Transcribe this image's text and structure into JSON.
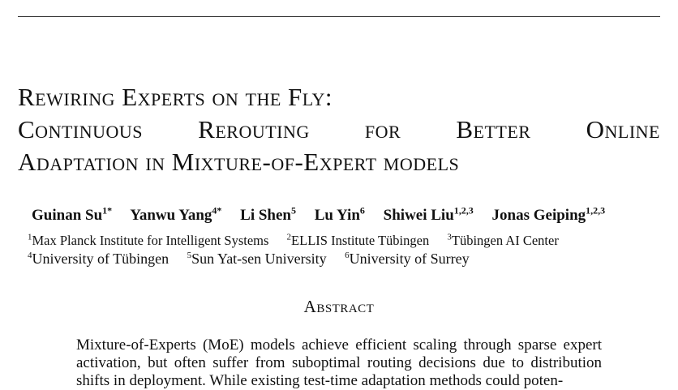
{
  "title": {
    "line1": "Rewiring Experts on the Fly:",
    "line2": "Continuous Rerouting for Better Online",
    "line3": "Adaptation in Mixture-of-Expert models"
  },
  "authors": [
    {
      "name": "Guinan Su",
      "sup": "1*"
    },
    {
      "name": "Yanwu Yang",
      "sup": "4*"
    },
    {
      "name": "Li Shen",
      "sup": "5"
    },
    {
      "name": "Lu Yin",
      "sup": "6"
    },
    {
      "name": "Shiwei Liu",
      "sup": "1,2,3"
    },
    {
      "name": "Jonas Geiping",
      "sup": "1,2,3"
    }
  ],
  "affiliations": [
    {
      "num": "1",
      "name": "Max Planck Institute for Intelligent Systems"
    },
    {
      "num": "2",
      "name": "ELLIS Institute Tübingen"
    },
    {
      "num": "3",
      "name": "Tübingen AI Center"
    },
    {
      "num": "4",
      "name": "University of Tübingen"
    },
    {
      "num": "5",
      "name": "Sun Yat-sen University"
    },
    {
      "num": "6",
      "name": "University of Surrey"
    }
  ],
  "abstract": {
    "heading": "Abstract",
    "text": "Mixture-of-Experts (MoE) models achieve efficient scaling through sparse expert activation, but often suffer from suboptimal routing decisions due to distribution shifts in deployment. While existing test-time adaptation methods could poten-"
  }
}
